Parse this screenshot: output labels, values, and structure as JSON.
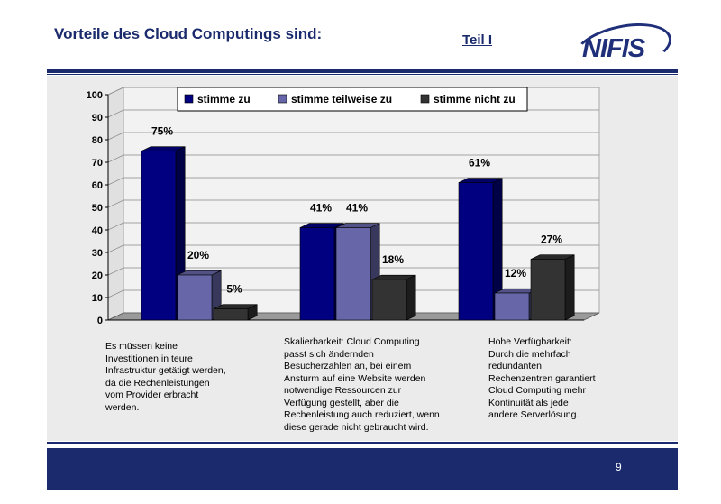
{
  "header": {
    "title": "Vorteile des Cloud Computings sind:",
    "part": "Teil I",
    "logo_text": "NIFIS"
  },
  "chart_data": {
    "type": "bar",
    "categories": [
      "",
      "",
      ""
    ],
    "series": [
      {
        "name": "stimme zu",
        "color": "#000080",
        "values": [
          75,
          41,
          61
        ],
        "labels": [
          "75%",
          "41%",
          "61%"
        ]
      },
      {
        "name": "stimme teilweise zu",
        "color": "#6666a8",
        "values": [
          20,
          41,
          12
        ],
        "labels": [
          "20%",
          "41%",
          "12%"
        ]
      },
      {
        "name": "stimme nicht zu",
        "color": "#333333",
        "values": [
          5,
          18,
          27
        ],
        "labels": [
          "5%",
          "18%",
          "27%"
        ]
      }
    ],
    "ylim": [
      0,
      100
    ],
    "yticks": [
      0,
      10,
      20,
      30,
      40,
      50,
      60,
      70,
      80,
      90,
      100
    ],
    "legend_position": "top",
    "three_d": true
  },
  "descriptions": [
    "Es müssen keine\nInvestitionen in teure\nInfrastruktur getätigt werden,\nda die Rechenleistungen\nvom Provider erbracht\nwerden.",
    "Skalierbarkeit: Cloud Computing\npasst sich ändernden\nBesucherzahlen an, bei einem\nAnsturm auf eine Website werden\nnotwendige Ressourcen zur\nVerfügung gestellt, aber die\nRechenleistung auch reduziert, wenn\ndiese gerade nicht gebraucht wird.",
    "Hohe Verfügbarkeit:\nDurch die mehrfach\nredundanten\nRechenzentren garantiert\nCloud Computing mehr\nKontinuität als jede\nandere Serverlösung."
  ],
  "footer": {
    "page_number": "9"
  }
}
